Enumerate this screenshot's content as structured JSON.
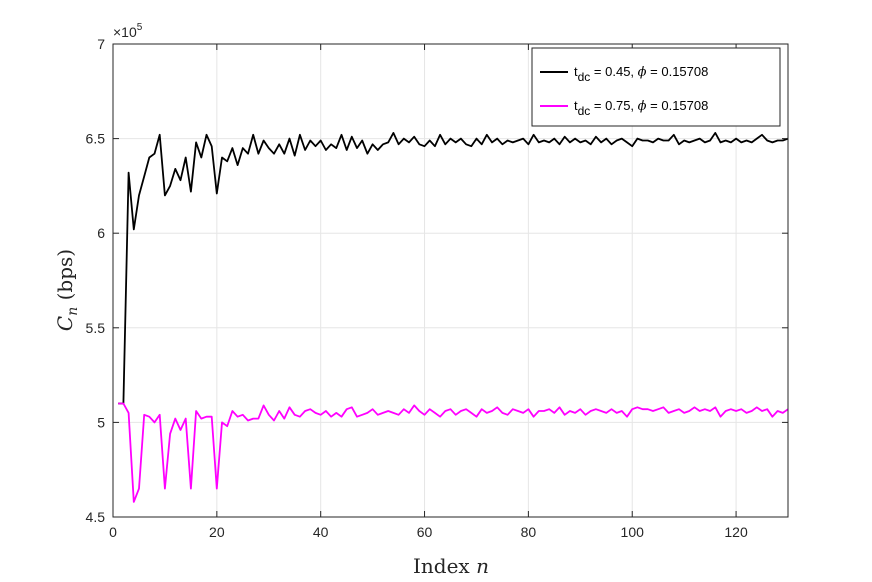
{
  "chart_data": {
    "type": "line",
    "title": "",
    "xlabel": "Index",
    "xlabel_var": "n",
    "ylabel_var": "C",
    "ylabel_sub": "n",
    "ylabel_unit": "(bps)",
    "exponent_label": "×10",
    "exponent_power": "5",
    "xlim": [
      0,
      130
    ],
    "ylim": [
      4.5,
      7
    ],
    "xticks": [
      0,
      20,
      40,
      60,
      80,
      100,
      120
    ],
    "yticks": [
      4.5,
      5,
      5.5,
      6,
      6.5,
      7
    ],
    "ytick_labels": [
      "4.5",
      "5",
      "5.5",
      "6",
      "6.5",
      "7"
    ],
    "grid": true,
    "legend_position": "top-right",
    "series": [
      {
        "name_parts": [
          "t",
          "dc",
          " = 0.45, ",
          "ϕ",
          " = 0.15708"
        ],
        "color": "#000000",
        "x": [
          1,
          2,
          3,
          4,
          5,
          6,
          7,
          8,
          9,
          10,
          11,
          12,
          13,
          14,
          15,
          16,
          17,
          18,
          19,
          20,
          21,
          22,
          23,
          24,
          25,
          26,
          27,
          28,
          29,
          30,
          31,
          32,
          33,
          34,
          35,
          36,
          37,
          38,
          39,
          40,
          41,
          42,
          43,
          44,
          45,
          46,
          47,
          48,
          49,
          50,
          51,
          52,
          53,
          54,
          55,
          56,
          57,
          58,
          59,
          60,
          61,
          62,
          63,
          64,
          65,
          66,
          67,
          68,
          69,
          70,
          71,
          72,
          73,
          74,
          75,
          76,
          77,
          78,
          79,
          80,
          81,
          82,
          83,
          84,
          85,
          86,
          87,
          88,
          89,
          90,
          91,
          92,
          93,
          94,
          95,
          96,
          97,
          98,
          99,
          100,
          101,
          102,
          103,
          104,
          105,
          106,
          107,
          108,
          109,
          110,
          111,
          112,
          113,
          114,
          115,
          116,
          117,
          118,
          119,
          120,
          121,
          122,
          123,
          124,
          125,
          126,
          127,
          128,
          129,
          130
        ],
        "y": [
          5.1,
          5.1,
          6.32,
          6.02,
          6.2,
          6.3,
          6.4,
          6.42,
          6.52,
          6.2,
          6.25,
          6.34,
          6.28,
          6.4,
          6.22,
          6.48,
          6.4,
          6.52,
          6.46,
          6.21,
          6.4,
          6.38,
          6.45,
          6.36,
          6.45,
          6.42,
          6.52,
          6.42,
          6.49,
          6.45,
          6.42,
          6.47,
          6.42,
          6.5,
          6.41,
          6.52,
          6.44,
          6.49,
          6.46,
          6.49,
          6.44,
          6.47,
          6.45,
          6.52,
          6.44,
          6.51,
          6.45,
          6.49,
          6.42,
          6.47,
          6.44,
          6.47,
          6.48,
          6.53,
          6.47,
          6.5,
          6.48,
          6.51,
          6.47,
          6.46,
          6.49,
          6.46,
          6.52,
          6.47,
          6.5,
          6.48,
          6.5,
          6.47,
          6.46,
          6.5,
          6.47,
          6.52,
          6.48,
          6.5,
          6.47,
          6.49,
          6.48,
          6.49,
          6.5,
          6.47,
          6.52,
          6.48,
          6.49,
          6.48,
          6.5,
          6.47,
          6.51,
          6.48,
          6.5,
          6.48,
          6.49,
          6.47,
          6.51,
          6.48,
          6.5,
          6.47,
          6.49,
          6.5,
          6.48,
          6.46,
          6.5,
          6.49,
          6.49,
          6.48,
          6.5,
          6.49,
          6.49,
          6.52,
          6.47,
          6.49,
          6.48,
          6.49,
          6.5,
          6.48,
          6.49,
          6.53,
          6.48,
          6.49,
          6.48,
          6.5,
          6.48,
          6.49,
          6.48,
          6.5,
          6.52,
          6.49,
          6.48,
          6.49,
          6.49,
          6.5
        ]
      },
      {
        "name_parts": [
          "t",
          "dc",
          " = 0.75, ",
          "ϕ",
          " = 0.15708"
        ],
        "color": "#ff00ff",
        "x": [
          1,
          2,
          3,
          4,
          5,
          6,
          7,
          8,
          9,
          10,
          11,
          12,
          13,
          14,
          15,
          16,
          17,
          18,
          19,
          20,
          21,
          22,
          23,
          24,
          25,
          26,
          27,
          28,
          29,
          30,
          31,
          32,
          33,
          34,
          35,
          36,
          37,
          38,
          39,
          40,
          41,
          42,
          43,
          44,
          45,
          46,
          47,
          48,
          49,
          50,
          51,
          52,
          53,
          54,
          55,
          56,
          57,
          58,
          59,
          60,
          61,
          62,
          63,
          64,
          65,
          66,
          67,
          68,
          69,
          70,
          71,
          72,
          73,
          74,
          75,
          76,
          77,
          78,
          79,
          80,
          81,
          82,
          83,
          84,
          85,
          86,
          87,
          88,
          89,
          90,
          91,
          92,
          93,
          94,
          95,
          96,
          97,
          98,
          99,
          100,
          101,
          102,
          103,
          104,
          105,
          106,
          107,
          108,
          109,
          110,
          111,
          112,
          113,
          114,
          115,
          116,
          117,
          118,
          119,
          120,
          121,
          122,
          123,
          124,
          125,
          126,
          127,
          128,
          129,
          130
        ],
        "y": [
          5.1,
          5.1,
          5.05,
          4.58,
          4.65,
          5.04,
          5.03,
          5.0,
          5.04,
          4.65,
          4.94,
          5.02,
          4.96,
          5.02,
          4.65,
          5.06,
          5.02,
          5.03,
          5.03,
          4.65,
          5.0,
          4.98,
          5.06,
          5.03,
          5.04,
          5.01,
          5.02,
          5.02,
          5.09,
          5.04,
          5.01,
          5.06,
          5.02,
          5.08,
          5.04,
          5.03,
          5.06,
          5.07,
          5.05,
          5.04,
          5.06,
          5.03,
          5.05,
          5.03,
          5.07,
          5.08,
          5.03,
          5.04,
          5.05,
          5.07,
          5.04,
          5.05,
          5.06,
          5.05,
          5.04,
          5.07,
          5.05,
          5.09,
          5.06,
          5.04,
          5.07,
          5.05,
          5.03,
          5.06,
          5.07,
          5.04,
          5.06,
          5.07,
          5.05,
          5.03,
          5.07,
          5.05,
          5.06,
          5.08,
          5.05,
          5.04,
          5.07,
          5.06,
          5.05,
          5.07,
          5.03,
          5.06,
          5.06,
          5.07,
          5.05,
          5.08,
          5.04,
          5.06,
          5.05,
          5.07,
          5.04,
          5.06,
          5.07,
          5.06,
          5.05,
          5.07,
          5.05,
          5.06,
          5.03,
          5.07,
          5.08,
          5.07,
          5.07,
          5.06,
          5.07,
          5.08,
          5.05,
          5.06,
          5.07,
          5.05,
          5.06,
          5.08,
          5.06,
          5.07,
          5.06,
          5.08,
          5.03,
          5.06,
          5.07,
          5.06,
          5.07,
          5.05,
          5.06,
          5.08,
          5.06,
          5.07,
          5.03,
          5.06,
          5.05,
          5.07
        ]
      }
    ]
  }
}
